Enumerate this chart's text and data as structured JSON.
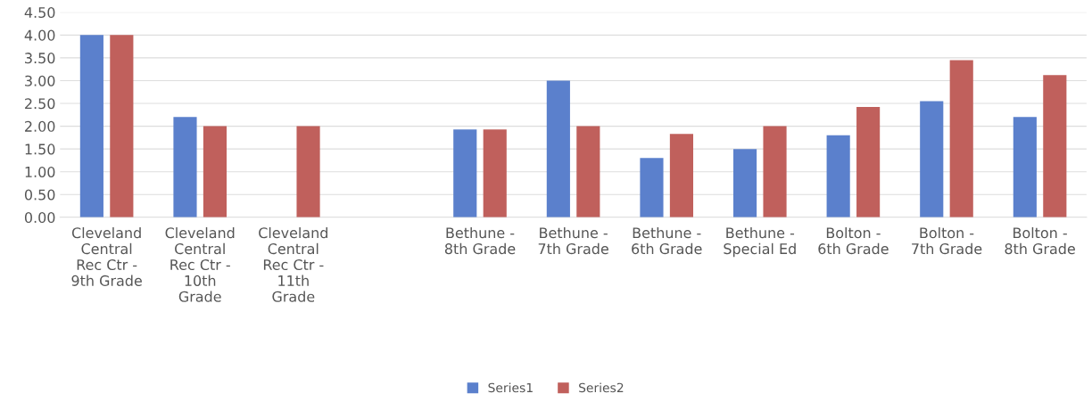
{
  "chart_data": {
    "type": "bar",
    "categories": [
      "Cleveland\nCentral\nRec Ctr -\n9th Grade",
      "Cleveland\nCentral\nRec Ctr -\n10th\nGrade",
      "Cleveland\nCentral\nRec Ctr -\n11th\nGrade",
      null,
      "Bethune -\n8th Grade",
      "Bethune -\n7th Grade",
      "Bethune -\n6th Grade",
      "Bethune -\nSpecial Ed",
      "Bolton -\n6th Grade",
      "Bolton -\n7th Grade",
      "Bolton -\n8th Grade"
    ],
    "series": [
      {
        "name": "Series1",
        "color": "#5b80cc",
        "values": [
          4.0,
          2.2,
          null,
          null,
          1.93,
          3.0,
          1.3,
          1.5,
          1.8,
          2.55,
          2.2
        ]
      },
      {
        "name": "Series2",
        "color": "#c0605c",
        "values": [
          4.0,
          2.0,
          2.0,
          null,
          1.93,
          2.0,
          1.83,
          2.0,
          2.42,
          3.45,
          3.12
        ]
      }
    ],
    "ylim": [
      0,
      4.5
    ],
    "yticks": [
      {
        "value": 0,
        "label": "0.00"
      },
      {
        "value": 0.5,
        "label": "0.50"
      },
      {
        "value": 1,
        "label": "1.00"
      },
      {
        "value": 1.5,
        "label": "1.50"
      },
      {
        "value": 2,
        "label": "2.00"
      },
      {
        "value": 2.5,
        "label": "2.50"
      },
      {
        "value": 3,
        "label": "3.00"
      },
      {
        "value": 3.5,
        "label": "3.50"
      },
      {
        "value": 4,
        "label": "4.00"
      },
      {
        "value": 4.5,
        "label": "4.50"
      }
    ],
    "grid": "y",
    "legend": "bottom"
  }
}
